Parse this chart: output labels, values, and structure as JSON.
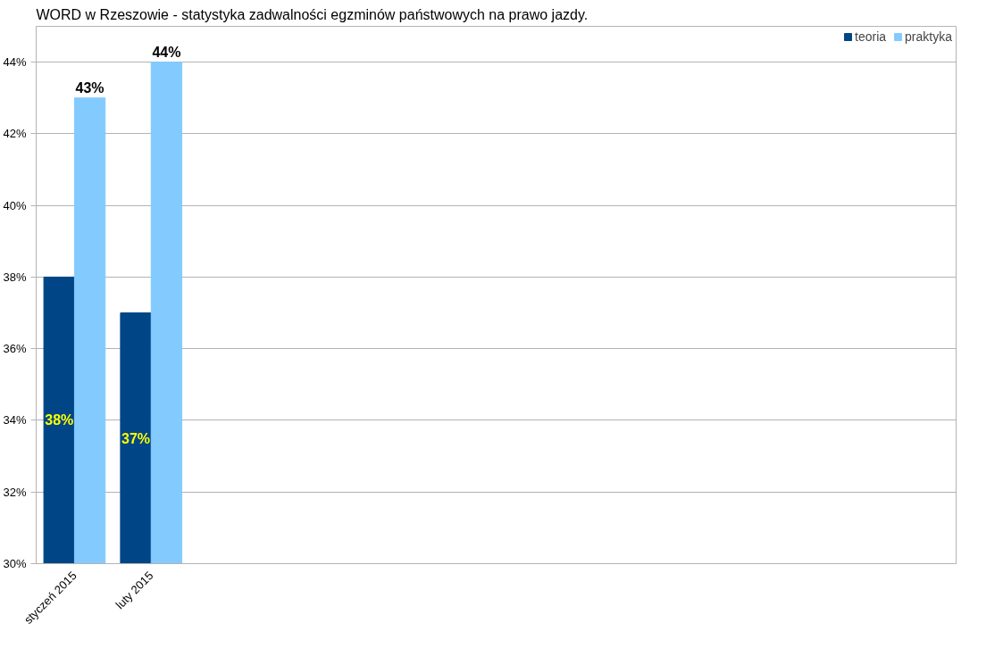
{
  "chart_data": {
    "type": "bar",
    "title": "WORD w Rzeszowie - statystyka zadwalności egzminów państwowych na prawo jazdy.",
    "categories": [
      "styczeń 2015",
      "luty 2015",
      null,
      null,
      null,
      null,
      null,
      null,
      null,
      null,
      null,
      null
    ],
    "series": [
      {
        "name": "teoria",
        "color": "#004586",
        "values": [
          38,
          37,
          null,
          null,
          null,
          null,
          null,
          null,
          null,
          null,
          null,
          null
        ],
        "value_labels": [
          "38%",
          "37%",
          null,
          null,
          null,
          null,
          null,
          null,
          null,
          null,
          null,
          null
        ]
      },
      {
        "name": "praktyka",
        "color": "#83caff",
        "values": [
          43,
          44,
          null,
          null,
          null,
          null,
          null,
          null,
          null,
          null,
          null,
          null
        ],
        "value_labels": [
          "43%",
          "44%",
          null,
          null,
          null,
          null,
          null,
          null,
          null,
          null,
          null,
          null
        ]
      }
    ],
    "ylim": [
      30,
      45
    ],
    "yticks": [
      {
        "value": 30,
        "label": "30%"
      },
      {
        "value": 32,
        "label": "32%"
      },
      {
        "value": 34,
        "label": "34%"
      },
      {
        "value": 36,
        "label": "36%"
      },
      {
        "value": 38,
        "label": "38%"
      },
      {
        "value": 40,
        "label": "40%"
      },
      {
        "value": 42,
        "label": "42%"
      },
      {
        "value": 44,
        "label": "44%"
      }
    ],
    "grid": "y",
    "legend": "top right"
  }
}
